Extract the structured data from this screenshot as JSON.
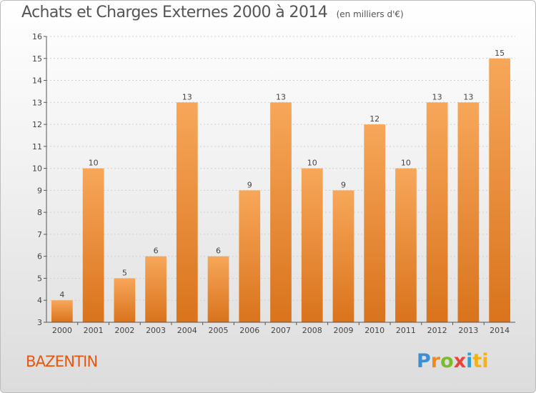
{
  "title": "Achats et Charges Externes 2000 à 2014",
  "unit": "(en milliers d'€)",
  "commune": "BAZENTIN",
  "logo": {
    "text": "Proxiti",
    "letters": [
      "P",
      "r",
      "o",
      "x",
      "i",
      "ti"
    ]
  },
  "colors": {
    "bar_light": "#f7a75a",
    "bar_dark": "#d9731c",
    "axis": "#555555",
    "grid": "#cfcfcf",
    "commune": "#e8560f"
  },
  "chart_data": {
    "type": "bar",
    "title": "Achats et Charges Externes 2000 à 2014",
    "xlabel": "",
    "ylabel": "",
    "categories": [
      "2000",
      "2001",
      "2002",
      "2003",
      "2004",
      "2005",
      "2006",
      "2007",
      "2008",
      "2009",
      "2010",
      "2011",
      "2012",
      "2013",
      "2014"
    ],
    "values": [
      4,
      10,
      5,
      6,
      13,
      6,
      9,
      13,
      10,
      9,
      12,
      10,
      13,
      13,
      15
    ],
    "data_labels": [
      "4",
      "10",
      "5",
      "6",
      "13",
      "6",
      "9",
      "13",
      "10",
      "9",
      "12",
      "10",
      "13",
      "13",
      "15"
    ],
    "ylim": [
      3,
      16
    ],
    "yticks": [
      "3",
      "4",
      "5",
      "6",
      "7",
      "8",
      "9",
      "10",
      "11",
      "12",
      "13",
      "14",
      "15",
      "16"
    ],
    "grid": true,
    "legend": "none"
  }
}
